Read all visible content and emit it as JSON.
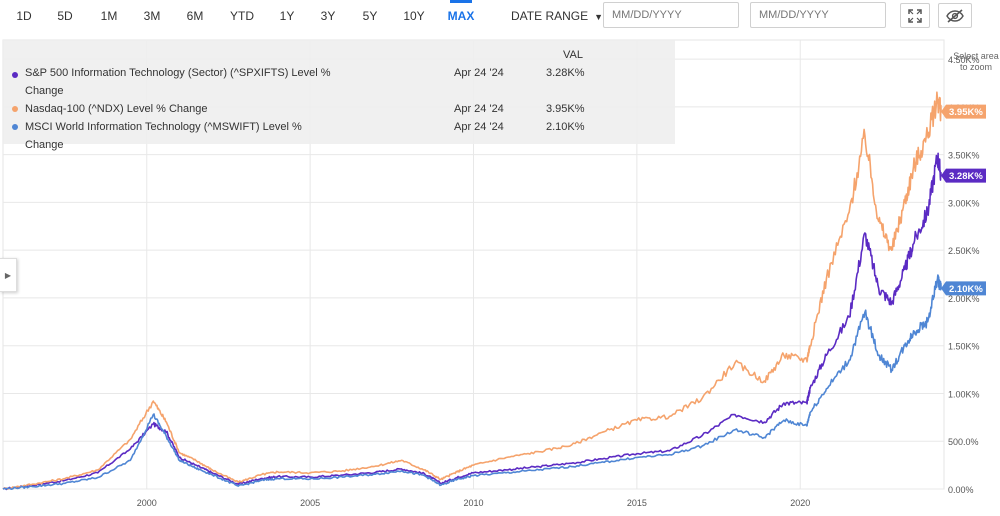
{
  "toolbar": {
    "ranges": [
      "1D",
      "5D",
      "1M",
      "3M",
      "6M",
      "YTD",
      "1Y",
      "3Y",
      "5Y",
      "10Y",
      "MAX"
    ],
    "active_range": "MAX",
    "date_range_label": "DATE RANGE",
    "start_date_placeholder": "MM/DD/YYYY",
    "end_date_placeholder": "MM/DD/YYYY",
    "icons": [
      "fullscreen-icon",
      "hide-icon"
    ]
  },
  "legend": {
    "value_header": "VAL",
    "rows": [
      {
        "name": "S&P 500 Information Technology (Sector) (^SPXIFTS) Level % Change",
        "date": "Apr 24 '24",
        "value": "3.28K%"
      },
      {
        "name": "Nasdaq-100 (^NDX) Level % Change",
        "date": "Apr 24 '24",
        "value": "3.95K%"
      },
      {
        "name": "MSCI World Information Technology (^MSWIFT) Level % Change",
        "date": "Apr 24 '24",
        "value": "2.10K%"
      }
    ]
  },
  "zoom_hint": "Select area to zoom",
  "colors": {
    "spx": "#5b2bc3",
    "ndx": "#f5a36c",
    "msw": "#4f86d4",
    "accent": "#1a73e8"
  },
  "chart_data": {
    "type": "line",
    "xlabel": "",
    "ylabel": "",
    "x_ticks": [
      "2000",
      "2005",
      "2010",
      "2015",
      "2020"
    ],
    "y_ticks": [
      "0.00%",
      "500.0%",
      "1.00K%",
      "1.50K%",
      "2.00K%",
      "2.50K%",
      "3.00K%",
      "3.50K%",
      "4.00K%",
      "4.50K%"
    ],
    "ylim": [
      0,
      4700
    ],
    "xlim": [
      1995.6,
      2024.4
    ],
    "grid": true,
    "series": [
      {
        "name": "S&P 500 Information Technology (Sector) (^SPXIFTS) Level % Change",
        "color_key": "spx",
        "end_label": "3.28K%",
        "points": [
          [
            1995.6,
            0
          ],
          [
            1996.5,
            40
          ],
          [
            1997.5,
            90
          ],
          [
            1998.5,
            170
          ],
          [
            1999.5,
            420
          ],
          [
            2000.2,
            680
          ],
          [
            2000.6,
            600
          ],
          [
            2001.0,
            330
          ],
          [
            2001.5,
            250
          ],
          [
            2002.0,
            170
          ],
          [
            2002.8,
            50
          ],
          [
            2003.5,
            110
          ],
          [
            2004.0,
            130
          ],
          [
            2005.0,
            125
          ],
          [
            2006.0,
            145
          ],
          [
            2007.0,
            175
          ],
          [
            2007.8,
            210
          ],
          [
            2008.5,
            160
          ],
          [
            2009.0,
            60
          ],
          [
            2009.5,
            120
          ],
          [
            2010.0,
            170
          ],
          [
            2011.0,
            200
          ],
          [
            2012.0,
            235
          ],
          [
            2013.0,
            270
          ],
          [
            2014.0,
            320
          ],
          [
            2015.0,
            370
          ],
          [
            2016.0,
            400
          ],
          [
            2017.0,
            560
          ],
          [
            2018.0,
            780
          ],
          [
            2018.9,
            700
          ],
          [
            2019.5,
            900
          ],
          [
            2020.2,
            900
          ],
          [
            2020.3,
            1050
          ],
          [
            2020.8,
            1400
          ],
          [
            2021.5,
            1800
          ],
          [
            2021.98,
            2680
          ],
          [
            2022.4,
            2100
          ],
          [
            2022.8,
            1950
          ],
          [
            2023.2,
            2300
          ],
          [
            2023.5,
            2600
          ],
          [
            2023.9,
            2900
          ],
          [
            2024.2,
            3480
          ],
          [
            2024.31,
            3280
          ]
        ]
      },
      {
        "name": "Nasdaq-100 (^NDX) Level % Change",
        "color_key": "ndx",
        "end_label": "3.95K%",
        "points": [
          [
            1995.6,
            0
          ],
          [
            1996.5,
            50
          ],
          [
            1997.5,
            110
          ],
          [
            1998.5,
            200
          ],
          [
            1999.5,
            520
          ],
          [
            2000.2,
            920
          ],
          [
            2000.6,
            700
          ],
          [
            2001.0,
            380
          ],
          [
            2001.5,
            300
          ],
          [
            2002.0,
            200
          ],
          [
            2002.8,
            70
          ],
          [
            2003.5,
            150
          ],
          [
            2004.0,
            180
          ],
          [
            2005.0,
            170
          ],
          [
            2006.0,
            190
          ],
          [
            2007.0,
            240
          ],
          [
            2007.8,
            300
          ],
          [
            2008.5,
            200
          ],
          [
            2009.0,
            100
          ],
          [
            2009.5,
            180
          ],
          [
            2010.0,
            250
          ],
          [
            2011.0,
            330
          ],
          [
            2012.0,
            390
          ],
          [
            2013.0,
            460
          ],
          [
            2014.0,
            600
          ],
          [
            2015.0,
            720
          ],
          [
            2016.0,
            760
          ],
          [
            2017.0,
            950
          ],
          [
            2018.0,
            1320
          ],
          [
            2018.9,
            1130
          ],
          [
            2019.5,
            1400
          ],
          [
            2020.2,
            1350
          ],
          [
            2020.3,
            1500
          ],
          [
            2020.8,
            2200
          ],
          [
            2021.5,
            2900
          ],
          [
            2021.98,
            3700
          ],
          [
            2022.4,
            2800
          ],
          [
            2022.8,
            2500
          ],
          [
            2023.2,
            3000
          ],
          [
            2023.5,
            3400
          ],
          [
            2023.9,
            3700
          ],
          [
            2024.2,
            4080
          ],
          [
            2024.31,
            3950
          ]
        ]
      },
      {
        "name": "MSCI World Information Technology (^MSWIFT) Level % Change",
        "color_key": "msw",
        "end_label": "2.10K%",
        "points": [
          [
            1995.6,
            0
          ],
          [
            1996.5,
            25
          ],
          [
            1997.5,
            60
          ],
          [
            1998.5,
            120
          ],
          [
            1999.5,
            300
          ],
          [
            2000.2,
            780
          ],
          [
            2000.6,
            550
          ],
          [
            2001.0,
            300
          ],
          [
            2001.5,
            220
          ],
          [
            2002.0,
            150
          ],
          [
            2002.8,
            30
          ],
          [
            2003.5,
            90
          ],
          [
            2004.0,
            110
          ],
          [
            2005.0,
            105
          ],
          [
            2006.0,
            125
          ],
          [
            2007.0,
            155
          ],
          [
            2007.8,
            190
          ],
          [
            2008.5,
            140
          ],
          [
            2009.0,
            40
          ],
          [
            2009.5,
            100
          ],
          [
            2010.0,
            140
          ],
          [
            2011.0,
            170
          ],
          [
            2012.0,
            200
          ],
          [
            2013.0,
            235
          ],
          [
            2014.0,
            280
          ],
          [
            2015.0,
            330
          ],
          [
            2016.0,
            360
          ],
          [
            2017.0,
            450
          ],
          [
            2018.0,
            620
          ],
          [
            2018.9,
            540
          ],
          [
            2019.5,
            720
          ],
          [
            2020.2,
            660
          ],
          [
            2020.3,
            800
          ],
          [
            2020.8,
            1050
          ],
          [
            2021.5,
            1350
          ],
          [
            2021.98,
            1850
          ],
          [
            2022.4,
            1400
          ],
          [
            2022.8,
            1250
          ],
          [
            2023.2,
            1500
          ],
          [
            2023.5,
            1650
          ],
          [
            2023.9,
            1750
          ],
          [
            2024.2,
            2200
          ],
          [
            2024.31,
            2100
          ]
        ]
      }
    ]
  }
}
